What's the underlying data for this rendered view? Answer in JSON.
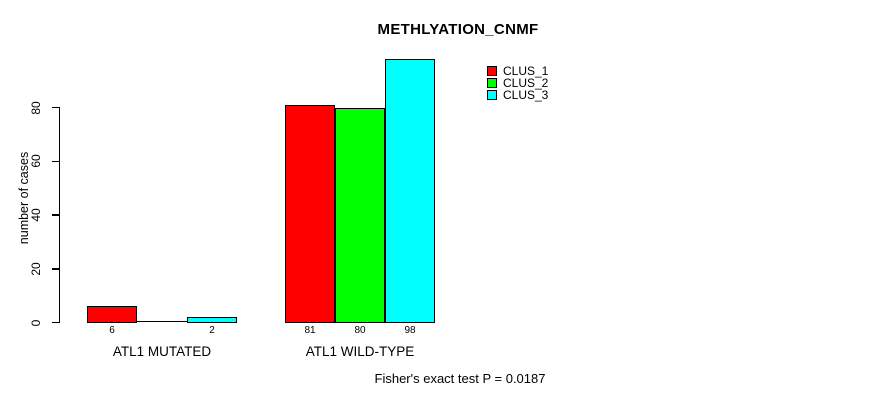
{
  "chart_data": {
    "type": "bar",
    "title": "METHLYATION_CNMF",
    "xlabel": "",
    "ylabel": "number of cases",
    "categories": [
      "ATL1 MUTATED",
      "ATL1 WILD-TYPE"
    ],
    "series": [
      {
        "name": "CLUS_1",
        "color": "#ff0000",
        "values": [
          6,
          81
        ]
      },
      {
        "name": "CLUS_2",
        "color": "#00ff00",
        "values": [
          0,
          80
        ]
      },
      {
        "name": "CLUS_3",
        "color": "#00ffff",
        "values": [
          2,
          98
        ]
      }
    ],
    "bar_value_labels": [
      [
        "6",
        "",
        "2"
      ],
      [
        "81",
        "80",
        "98"
      ]
    ],
    "yticks": [
      0,
      20,
      40,
      60,
      80
    ],
    "ylim": [
      0,
      80
    ],
    "grid": false,
    "legend_position": "top-right",
    "legend_entries": [
      "CLUS_1",
      "CLUS_2",
      "CLUS_3"
    ],
    "annotation": "Fisher's exact test P = 0.0187"
  }
}
